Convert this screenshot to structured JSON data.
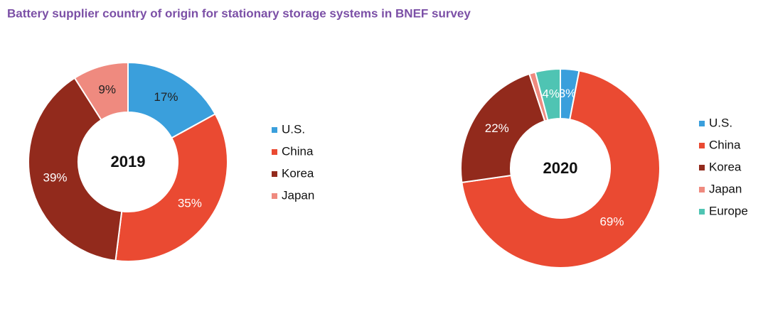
{
  "title": "Battery supplier country of origin for stationary storage systems in BNEF survey",
  "chart_data": [
    {
      "type": "pie",
      "donut": true,
      "center_label": "2019",
      "categories": [
        "U.S.",
        "China",
        "Korea",
        "Japan"
      ],
      "values": [
        17,
        35,
        39,
        9
      ],
      "value_labels": [
        "17%",
        "35%",
        "39%",
        "9%"
      ],
      "colors": [
        "#3a9fdc",
        "#ea4a32",
        "#922a1c",
        "#ef8a7f"
      ],
      "label_colors": [
        "#222222",
        "#ffffff",
        "#ffffff",
        "#222222"
      ],
      "legend": "right"
    },
    {
      "type": "pie",
      "donut": true,
      "center_label": "2020",
      "categories": [
        "U.S.",
        "China",
        "Korea",
        "Japan",
        "Europe"
      ],
      "values": [
        3,
        69,
        22,
        1,
        4
      ],
      "value_labels": [
        "3%",
        "69%",
        "22%",
        null,
        "4%"
      ],
      "colors": [
        "#3a9fdc",
        "#ea4a32",
        "#922a1c",
        "#ef8a7f",
        "#4fc4b3"
      ],
      "label_colors": [
        "#ffffff",
        "#ffffff",
        "#ffffff",
        "#ffffff",
        "#ffffff"
      ],
      "legend": "right"
    }
  ]
}
